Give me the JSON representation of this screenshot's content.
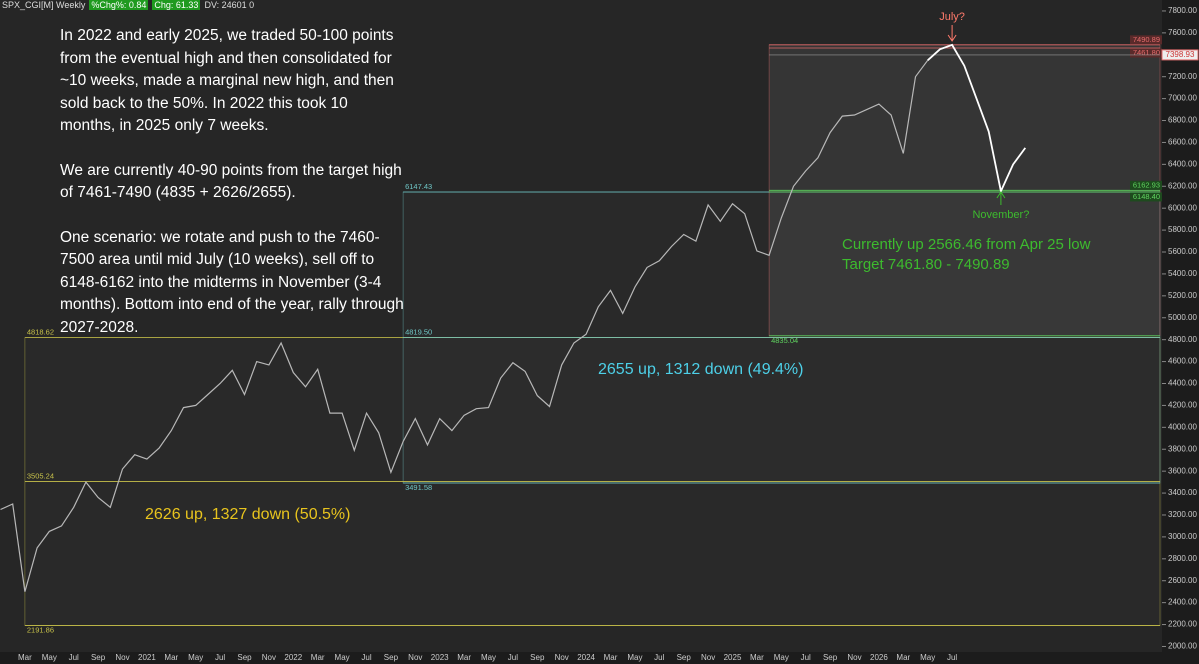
{
  "header": {
    "symbol": "SPX_CGI[M] Weekly",
    "chg_pct": "%Chg%: 0.84",
    "chg": "Chg: 61.33",
    "dv": "DV: 24601 0"
  },
  "note": [
    "In 2022 and early 2025, we traded 50-100 points from the eventual high and then consolidated for ~10 weeks, made a marginal new high, and then sold back to the 50%. In 2022 this took 10 months, in 2025 only 7 weeks.",
    "We are currently 40-90 points from the target high of 7461-7490 (4835 + 2626/2655).",
    "One scenario: we rotate and push to the 7460-7500 area until mid July (10 weeks), sell off to 6148-6162 into the midterms in November (3-4 months). Bottom into end of the year, rally through 2027-2028."
  ],
  "chart_data": {
    "type": "line",
    "categories": [
      null,
      null,
      "Mar",
      null,
      "May",
      null,
      "Jul",
      null,
      "Sep",
      null,
      "Nov",
      null,
      "2021",
      null,
      "Mar",
      null,
      "May",
      null,
      "Jul",
      null,
      "Sep",
      null,
      "Nov",
      null,
      "2022",
      null,
      "Mar",
      null,
      "May",
      null,
      "Jul",
      null,
      "Sep",
      null,
      "Nov",
      null,
      "2023",
      null,
      "Mar",
      null,
      "May",
      null,
      "Jul",
      null,
      "Sep",
      null,
      "Nov",
      null,
      "2024",
      null,
      "Mar",
      null,
      "May",
      null,
      "Jul",
      null,
      "Sep",
      null,
      "Nov",
      null,
      "2025",
      null,
      "Mar",
      null,
      "May",
      null,
      "Jul",
      null,
      "Sep",
      null,
      "Nov",
      null,
      "2026",
      null,
      "Mar",
      null,
      "May",
      null,
      "Jul",
      null,
      null,
      null,
      null,
      null,
      null,
      null,
      null,
      null,
      null,
      null,
      null,
      null,
      null,
      null,
      null,
      null
    ],
    "series": [
      {
        "color": "#b8b8b8",
        "values": [
          3250,
          3300,
          2500,
          2900,
          3050,
          3100,
          3270,
          3500,
          3360,
          3270,
          3620,
          3750,
          3710,
          3810,
          3970,
          4180,
          4200,
          4300,
          4400,
          4520,
          4300,
          4600,
          4570,
          4770,
          4500,
          4370,
          4530,
          4130,
          4130,
          3790,
          4130,
          3950,
          3590,
          3870,
          4080,
          3840,
          4080,
          3970,
          4110,
          4170,
          4180,
          4450,
          4590,
          4510,
          4290,
          4190,
          4570,
          4770,
          4850,
          5100,
          5250,
          5040,
          5280,
          5460,
          5520,
          5650,
          5760,
          5700,
          6030,
          5880,
          6040,
          5950,
          5610,
          5570,
          5910,
          6200,
          6340,
          6460,
          6690,
          6840,
          6850,
          6900,
          6950,
          6850,
          6500,
          7200,
          7350,
          null,
          null,
          null,
          null,
          null,
          null,
          null,
          null,
          null,
          null,
          null,
          null,
          null,
          null,
          null,
          null,
          null,
          null,
          null
        ]
      },
      {
        "color": "#ffffff",
        "values": [
          null,
          null,
          null,
          null,
          null,
          null,
          null,
          null,
          null,
          null,
          null,
          null,
          null,
          null,
          null,
          null,
          null,
          null,
          null,
          null,
          null,
          null,
          null,
          null,
          null,
          null,
          null,
          null,
          null,
          null,
          null,
          null,
          null,
          null,
          null,
          null,
          null,
          null,
          null,
          null,
          null,
          null,
          null,
          null,
          null,
          null,
          null,
          null,
          null,
          null,
          null,
          null,
          null,
          null,
          null,
          null,
          null,
          null,
          null,
          null,
          null,
          null,
          null,
          null,
          null,
          null,
          null,
          null,
          null,
          null,
          null,
          null,
          null,
          null,
          null,
          null,
          7350,
          7450,
          7490,
          7300,
          7000,
          6700,
          6155,
          6400,
          6550,
          null,
          null,
          null,
          null,
          null,
          null,
          null,
          null,
          null,
          null,
          null
        ]
      }
    ],
    "ylim": [
      1840,
      7900
    ],
    "yticks": [
      {
        "value": 2000,
        "label": "2000.00"
      },
      {
        "value": 2200,
        "label": "2200.00"
      },
      {
        "value": 2400,
        "label": "2400.00"
      },
      {
        "value": 2600,
        "label": "2600.00"
      },
      {
        "value": 2800,
        "label": "2800.00"
      },
      {
        "value": 3000,
        "label": "3000.00"
      },
      {
        "value": 3200,
        "label": "3200.00"
      },
      {
        "value": 3400,
        "label": "3400.00"
      },
      {
        "value": 3600,
        "label": "3600.00"
      },
      {
        "value": 3800,
        "label": "3800.00"
      },
      {
        "value": 4000,
        "label": "4000.00"
      },
      {
        "value": 4200,
        "label": "4200.00"
      },
      {
        "value": 4400,
        "label": "4400.00"
      },
      {
        "value": 4600,
        "label": "4600.00"
      },
      {
        "value": 4800,
        "label": "4800.00"
      },
      {
        "value": 5000,
        "label": "5000.00"
      },
      {
        "value": 5200,
        "label": "5200.00"
      },
      {
        "value": 5400,
        "label": "5400.00"
      },
      {
        "value": 5600,
        "label": "5600.00"
      },
      {
        "value": 5800,
        "label": "5800.00"
      },
      {
        "value": 6000,
        "label": "6000.00"
      },
      {
        "value": 6200,
        "label": "6200.00"
      },
      {
        "value": 6400,
        "label": "6400.00"
      },
      {
        "value": 6600,
        "label": "6600.00"
      },
      {
        "value": 6800,
        "label": "6800.00"
      },
      {
        "value": 7000,
        "label": "7000.00"
      },
      {
        "value": 7200,
        "label": "7200.00"
      },
      {
        "value": 7400,
        "label": "7400.00"
      },
      {
        "value": 7600,
        "label": "7600.00"
      },
      {
        "value": 7800,
        "label": "7800.00"
      }
    ],
    "levels": [
      {
        "value": 2191.86,
        "color": "#c8c24a"
      },
      {
        "value": 3505.24,
        "color": "#c8c24a"
      },
      {
        "value": 4818.62,
        "color": "#c8c24a"
      },
      {
        "value": 3491.58,
        "color": "#6fc6c6"
      },
      {
        "value": {
          "value": 4819.5,
          "label": "4819.50"
        },
        "color": "#6fc6c6"
      },
      {
        "value": 6147.43,
        "color": "#6fc6c6"
      },
      {
        "value": 4835.04,
        "color": "#5fd35f"
      },
      {
        "value": {
          "value": 6148.4,
          "label": "6148.40"
        },
        "color": "#5fd35f"
      },
      {
        "value": 6162.93,
        "color": "#5fd35f"
      },
      {
        "value": {
          "value": 7461.8,
          "label": "7461.80"
        },
        "color": "#e36b6b"
      },
      {
        "value": 7490.89,
        "color": "#e36b6b"
      }
    ],
    "last_price": 7398.93,
    "annotations": [
      {
        "text": "2626 up, 1327 down (50.5%)",
        "color": "#e8c41e"
      },
      {
        "text": "2655 up, 1312 down (49.4%)",
        "color": "#4dd0e8"
      },
      {
        "text": "Currently up 2566.46 from Apr 25 low",
        "color": "#3dbb2e"
      },
      {
        "text": "Target 7461.80 - 7490.89",
        "color": "#3dbb2e"
      },
      {
        "text": "July?",
        "color": "#ff7a6b"
      },
      {
        "text": "November?",
        "color": "#3dbb2e"
      }
    ]
  }
}
